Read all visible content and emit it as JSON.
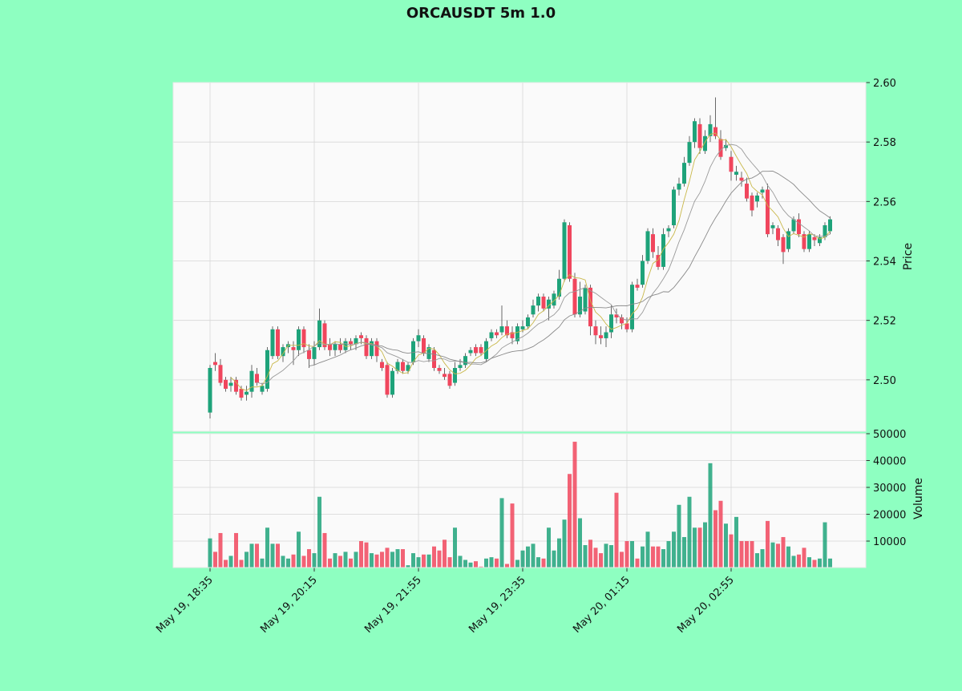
{
  "chart_data": {
    "type": "candlestick",
    "title": "ORCAUSDT 5m 1.0",
    "ylabel": "Price",
    "volume_label": "Volume",
    "up_color": "#1ea37a",
    "down_color": "#f0465d",
    "mav": [
      5,
      10,
      20
    ],
    "mav_colors": [
      "#c9b84a",
      "#9a9a9a",
      "#8a8a8a"
    ],
    "grid": true,
    "ylim": [
      2.4827,
      2.6
    ],
    "yticks": [
      {
        "value": 2.5,
        "label": "2.50"
      },
      2.52,
      2.54,
      2.56,
      2.58,
      {
        "value": 2.6,
        "label": "2.60"
      }
    ],
    "volume_ylim": [
      149,
      50000
    ],
    "volume_ticks": [
      10000,
      20000,
      30000,
      40000,
      50000
    ],
    "categories": [
      "May 19, 18:35",
      null,
      null,
      null,
      null,
      null,
      null,
      null,
      null,
      null,
      null,
      null,
      null,
      null,
      null,
      null,
      null,
      null,
      null,
      null,
      "May 19, 20:15",
      null,
      null,
      null,
      null,
      null,
      null,
      null,
      null,
      null,
      null,
      null,
      null,
      null,
      null,
      null,
      null,
      null,
      null,
      null,
      "May 19, 21:55",
      null,
      null,
      null,
      null,
      null,
      null,
      null,
      null,
      null,
      null,
      null,
      null,
      null,
      null,
      null,
      null,
      null,
      null,
      null,
      "May 19, 23:35",
      null,
      null,
      null,
      null,
      null,
      null,
      null,
      null,
      null,
      null,
      null,
      null,
      null,
      null,
      null,
      null,
      null,
      null,
      null,
      "May 20, 01:15",
      null,
      null,
      null,
      null,
      null,
      null,
      null,
      null,
      null,
      null,
      null,
      null,
      null,
      null,
      null,
      null,
      null,
      null,
      null,
      "May 20, 02:55",
      null,
      null,
      null,
      null,
      null,
      null,
      null,
      null,
      null,
      null,
      null,
      null,
      null,
      null,
      null,
      null,
      null,
      null,
      null
    ],
    "ohlc": [
      [
        2.489,
        2.505,
        2.487,
        2.504
      ],
      [
        2.506,
        2.509,
        2.503,
        2.505
      ],
      [
        2.505,
        2.507,
        2.498,
        2.499
      ],
      [
        2.5,
        2.501,
        2.496,
        2.497
      ],
      [
        2.498,
        2.501,
        2.496,
        2.499
      ],
      [
        2.5,
        2.501,
        2.495,
        2.496
      ],
      [
        2.497,
        2.498,
        2.493,
        2.494
      ],
      [
        2.495,
        2.498,
        2.493,
        2.496
      ],
      [
        2.496,
        2.505,
        2.494,
        2.503
      ],
      [
        2.502,
        2.504,
        2.498,
        2.499
      ],
      [
        2.496,
        2.499,
        2.495,
        2.498
      ],
      [
        2.497,
        2.511,
        2.496,
        2.51
      ],
      [
        2.508,
        2.518,
        2.507,
        2.517
      ],
      [
        2.517,
        2.518,
        2.507,
        2.508
      ],
      [
        2.508,
        2.512,
        2.506,
        2.511
      ],
      [
        2.511,
        2.513,
        2.509,
        2.512
      ],
      [
        2.511,
        2.513,
        2.505,
        2.51
      ],
      [
        2.51,
        2.518,
        2.508,
        2.517
      ],
      [
        2.517,
        2.518,
        2.509,
        2.511
      ],
      [
        2.51,
        2.512,
        2.504,
        2.507
      ],
      [
        2.507,
        2.513,
        2.505,
        2.511
      ],
      [
        2.511,
        2.524,
        2.51,
        2.52
      ],
      [
        2.519,
        2.52,
        2.51,
        2.511
      ],
      [
        2.512,
        2.514,
        2.508,
        2.51
      ],
      [
        2.51,
        2.513,
        2.508,
        2.512
      ],
      [
        2.512,
        2.514,
        2.509,
        2.51
      ],
      [
        2.51,
        2.514,
        2.509,
        2.513
      ],
      [
        2.513,
        2.514,
        2.51,
        2.512
      ],
      [
        2.512,
        2.515,
        2.51,
        2.514
      ],
      [
        2.515,
        2.516,
        2.512,
        2.514
      ],
      [
        2.514,
        2.515,
        2.507,
        2.508
      ],
      [
        2.508,
        2.514,
        2.507,
        2.513
      ],
      [
        2.513,
        2.514,
        2.506,
        2.508
      ],
      [
        2.506,
        2.507,
        2.503,
        2.504
      ],
      [
        2.505,
        2.506,
        2.494,
        2.495
      ],
      [
        2.495,
        2.504,
        2.494,
        2.503
      ],
      [
        2.503,
        2.507,
        2.502,
        2.506
      ],
      [
        2.506,
        2.507,
        2.502,
        2.503
      ],
      [
        2.503,
        2.506,
        2.502,
        2.505
      ],
      [
        2.506,
        2.514,
        2.505,
        2.513
      ],
      [
        2.513,
        2.517,
        2.511,
        2.515
      ],
      [
        2.514,
        2.515,
        2.508,
        2.509
      ],
      [
        2.507,
        2.512,
        2.506,
        2.511
      ],
      [
        2.51,
        2.511,
        2.503,
        2.504
      ],
      [
        2.504,
        2.505,
        2.502,
        2.503
      ],
      [
        2.502,
        2.504,
        2.5,
        2.501
      ],
      [
        2.502,
        2.503,
        2.497,
        2.498
      ],
      [
        2.499,
        2.506,
        2.498,
        2.504
      ],
      [
        2.504,
        2.507,
        2.503,
        2.505
      ],
      [
        2.505,
        2.509,
        2.504,
        2.508
      ],
      [
        2.509,
        2.511,
        2.508,
        2.51
      ],
      [
        2.511,
        2.512,
        2.508,
        2.509
      ],
      [
        2.511,
        2.512,
        2.508,
        2.509
      ],
      [
        2.507,
        2.514,
        2.506,
        2.513
      ],
      [
        2.514,
        2.517,
        2.513,
        2.516
      ],
      [
        2.516,
        2.517,
        2.514,
        2.515
      ],
      [
        2.516,
        2.525,
        2.515,
        2.518
      ],
      [
        2.518,
        2.52,
        2.514,
        2.515
      ],
      [
        2.516,
        2.518,
        2.512,
        2.514
      ],
      [
        2.513,
        2.519,
        2.512,
        2.518
      ],
      [
        2.517,
        2.52,
        2.516,
        2.518
      ],
      [
        2.518,
        2.522,
        2.517,
        2.521
      ],
      [
        2.522,
        2.527,
        2.521,
        2.525
      ],
      [
        2.525,
        2.529,
        2.523,
        2.528
      ],
      [
        2.528,
        2.529,
        2.523,
        2.524
      ],
      [
        2.524,
        2.528,
        2.52,
        2.527
      ],
      [
        2.525,
        2.53,
        2.524,
        2.529
      ],
      [
        2.528,
        2.537,
        2.527,
        2.534
      ],
      [
        2.534,
        2.554,
        2.533,
        2.553
      ],
      [
        2.552,
        2.553,
        2.533,
        2.534
      ],
      [
        2.534,
        2.536,
        2.521,
        2.522
      ],
      [
        2.522,
        2.533,
        2.521,
        2.528
      ],
      [
        2.523,
        2.532,
        2.522,
        2.531
      ],
      [
        2.531,
        2.532,
        2.515,
        2.518
      ],
      [
        2.518,
        2.52,
        2.512,
        2.515
      ],
      [
        2.515,
        2.518,
        2.512,
        2.514
      ],
      [
        2.514,
        2.518,
        2.511,
        2.516
      ],
      [
        2.516,
        2.525,
        2.514,
        2.522
      ],
      [
        2.522,
        2.524,
        2.519,
        2.521
      ],
      [
        2.521,
        2.522,
        2.517,
        2.519
      ],
      [
        2.519,
        2.521,
        2.516,
        2.517
      ],
      [
        2.517,
        2.533,
        2.516,
        2.532
      ],
      [
        2.532,
        2.534,
        2.53,
        2.531
      ],
      [
        2.532,
        2.542,
        2.531,
        2.54
      ],
      [
        2.54,
        2.551,
        2.539,
        2.55
      ],
      [
        2.549,
        2.551,
        2.541,
        2.543
      ],
      [
        2.542,
        2.545,
        2.537,
        2.538
      ],
      [
        2.538,
        2.551,
        2.537,
        2.549
      ],
      [
        2.55,
        2.552,
        2.548,
        2.551
      ],
      [
        2.552,
        2.565,
        2.551,
        2.564
      ],
      [
        2.564,
        2.568,
        2.562,
        2.566
      ],
      [
        2.566,
        2.575,
        2.565,
        2.573
      ],
      [
        2.573,
        2.582,
        2.572,
        2.58
      ],
      [
        2.58,
        2.588,
        2.578,
        2.587
      ],
      [
        2.586,
        2.588,
        2.576,
        2.578
      ],
      [
        2.577,
        2.584,
        2.576,
        2.582
      ],
      [
        2.582,
        2.589,
        2.58,
        2.586
      ],
      [
        2.585,
        2.595,
        2.581,
        2.582
      ],
      [
        2.581,
        2.584,
        2.574,
        2.575
      ],
      [
        2.578,
        2.581,
        2.577,
        2.579
      ],
      [
        2.575,
        2.577,
        2.567,
        2.57
      ],
      [
        2.569,
        2.572,
        2.567,
        2.57
      ],
      [
        2.568,
        2.57,
        2.565,
        2.567
      ],
      [
        2.566,
        2.568,
        2.56,
        2.561
      ],
      [
        2.562,
        2.563,
        2.555,
        2.557
      ],
      [
        2.56,
        2.563,
        2.558,
        2.562
      ],
      [
        2.563,
        2.565,
        2.561,
        2.564
      ],
      [
        2.564,
        2.566,
        2.548,
        2.549
      ],
      [
        2.551,
        2.553,
        2.549,
        2.552
      ],
      [
        2.551,
        2.552,
        2.545,
        2.547
      ],
      [
        2.548,
        2.549,
        2.539,
        2.543
      ],
      [
        2.544,
        2.551,
        2.543,
        2.55
      ],
      [
        2.55,
        2.555,
        2.549,
        2.554
      ],
      [
        2.554,
        2.556,
        2.548,
        2.549
      ],
      [
        2.549,
        2.55,
        2.543,
        2.544
      ],
      [
        2.544,
        2.55,
        2.543,
        2.549
      ],
      [
        2.548,
        2.549,
        2.545,
        2.547
      ],
      [
        2.546,
        2.549,
        2.545,
        2.548
      ],
      [
        2.548,
        2.553,
        2.547,
        2.552
      ],
      [
        2.55,
        2.555,
        2.549,
        2.554
      ]
    ],
    "volume": [
      11000,
      6000,
      13000,
      3000,
      4500,
      13000,
      3000,
      6000,
      9000,
      9000,
      3500,
      15000,
      9000,
      9000,
      4500,
      3500,
      5000,
      13500,
      4500,
      7000,
      5500,
      26500,
      13000,
      3500,
      5500,
      4500,
      6000,
      3500,
      6000,
      10000,
      9500,
      5500,
      5000,
      6000,
      7500,
      6000,
      7000,
      7000,
      1000,
      5500,
      4000,
      5000,
      5000,
      8000,
      6500,
      10500,
      4000,
      15000,
      4500,
      3000,
      2000,
      2500,
      500,
      3500,
      4000,
      3500,
      26000,
      1500,
      24000,
      3000,
      6500,
      8000,
      9000,
      4000,
      3500,
      15000,
      6500,
      11000,
      18000,
      35000,
      47000,
      18500,
      8500,
      10500,
      7500,
      5500,
      9000,
      8500,
      28000,
      6000,
      10000,
      10000,
      3500,
      8000,
      13500,
      8000,
      8000,
      7000,
      10000,
      13500,
      23500,
      11500,
      26500,
      15000,
      15000,
      17000,
      39000,
      21500,
      25000,
      16500,
      12500,
      19000,
      10000,
      10000,
      10000,
      5500,
      7000,
      17500,
      9500,
      9000,
      11500,
      8000,
      4500,
      5000,
      7500,
      4000,
      3000,
      3500,
      17000,
      3500
    ]
  }
}
